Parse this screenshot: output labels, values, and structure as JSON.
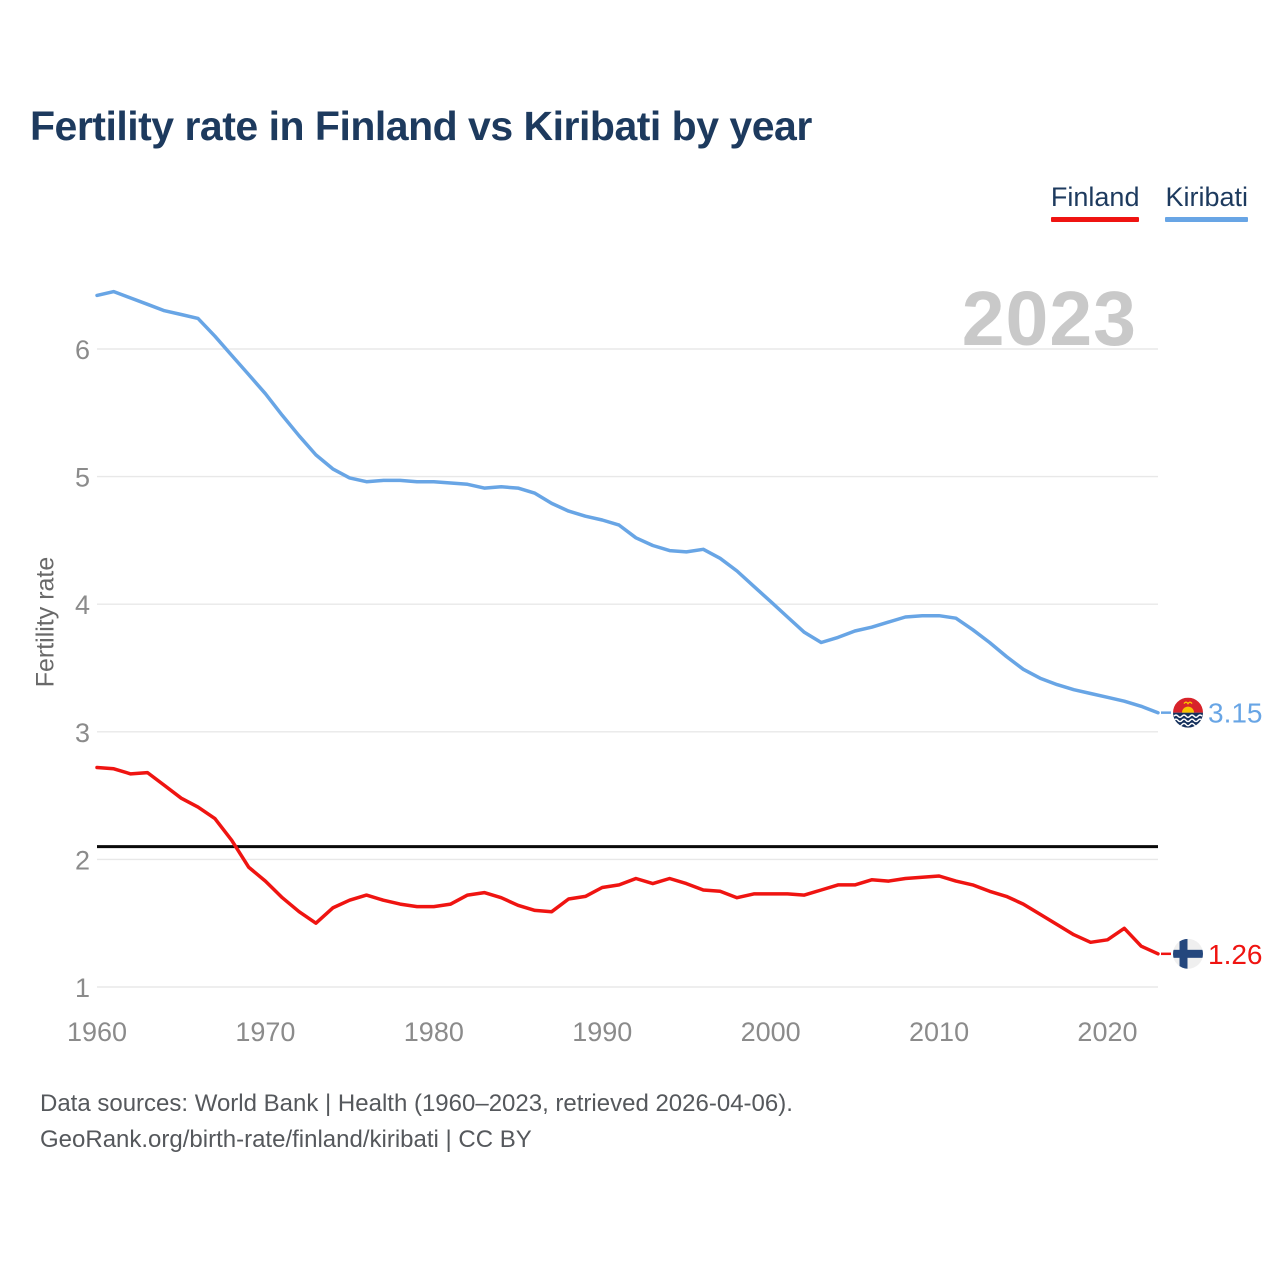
{
  "header": {
    "title": "Fertility rate in Finland vs Kiribati by year"
  },
  "legend": {
    "items": [
      {
        "label": "Finland",
        "color": "#ef1411"
      },
      {
        "label": "Kiribati",
        "color": "#68a5e5"
      }
    ]
  },
  "watermark": "2023",
  "chart_data": {
    "type": "line",
    "title": "Fertility rate in Finland vs Kiribati by year",
    "xlabel": "",
    "ylabel": "Fertility rate",
    "x_range": [
      1960,
      2023
    ],
    "ylim": [
      1,
      6.6
    ],
    "yticks": [
      1,
      2,
      3,
      4,
      5,
      6
    ],
    "xticks": [
      1960,
      1970,
      1980,
      1990,
      2000,
      2010,
      2020
    ],
    "grid": "horizontal",
    "grid_color": "#e8e8e8",
    "tick_color": "#8b8b8b",
    "legend_position": "top-right",
    "reference_line": {
      "value": 2.1,
      "color": "#0a0a0a",
      "name": "replacement-rate"
    },
    "x": [
      1960,
      1961,
      1962,
      1963,
      1964,
      1965,
      1966,
      1967,
      1968,
      1969,
      1970,
      1971,
      1972,
      1973,
      1974,
      1975,
      1976,
      1977,
      1978,
      1979,
      1980,
      1981,
      1982,
      1983,
      1984,
      1985,
      1986,
      1987,
      1988,
      1989,
      1990,
      1991,
      1992,
      1993,
      1994,
      1995,
      1996,
      1997,
      1998,
      1999,
      2000,
      2001,
      2002,
      2003,
      2004,
      2005,
      2006,
      2007,
      2008,
      2009,
      2010,
      2011,
      2012,
      2013,
      2014,
      2015,
      2016,
      2017,
      2018,
      2019,
      2020,
      2021,
      2022,
      2023
    ],
    "series": [
      {
        "name": "Finland",
        "color": "#ef1411",
        "end_label": "1.26",
        "flag_icon": "finland-flag-icon",
        "values": [
          2.72,
          2.71,
          2.67,
          2.68,
          2.58,
          2.48,
          2.41,
          2.32,
          2.15,
          1.94,
          1.83,
          1.7,
          1.59,
          1.5,
          1.62,
          1.68,
          1.72,
          1.68,
          1.65,
          1.63,
          1.63,
          1.65,
          1.72,
          1.74,
          1.7,
          1.64,
          1.6,
          1.59,
          1.69,
          1.71,
          1.78,
          1.8,
          1.85,
          1.81,
          1.85,
          1.81,
          1.76,
          1.75,
          1.7,
          1.73,
          1.73,
          1.73,
          1.72,
          1.76,
          1.8,
          1.8,
          1.84,
          1.83,
          1.85,
          1.86,
          1.87,
          1.83,
          1.8,
          1.75,
          1.71,
          1.65,
          1.57,
          1.49,
          1.41,
          1.35,
          1.37,
          1.46,
          1.32,
          1.26
        ]
      },
      {
        "name": "Kiribati",
        "color": "#68a5e5",
        "end_label": "3.15",
        "flag_icon": "kiribati-flag-icon",
        "values": [
          6.42,
          6.45,
          6.4,
          6.35,
          6.3,
          6.27,
          6.24,
          6.1,
          5.95,
          5.8,
          5.65,
          5.48,
          5.32,
          5.17,
          5.06,
          4.99,
          4.96,
          4.97,
          4.97,
          4.96,
          4.96,
          4.95,
          4.94,
          4.91,
          4.92,
          4.91,
          4.87,
          4.79,
          4.73,
          4.69,
          4.66,
          4.62,
          4.52,
          4.46,
          4.42,
          4.41,
          4.43,
          4.36,
          4.26,
          4.14,
          4.02,
          3.9,
          3.78,
          3.7,
          3.74,
          3.79,
          3.82,
          3.86,
          3.9,
          3.91,
          3.91,
          3.89,
          3.8,
          3.7,
          3.59,
          3.49,
          3.42,
          3.37,
          3.33,
          3.3,
          3.27,
          3.24,
          3.2,
          3.15
        ]
      }
    ]
  },
  "footer": {
    "line1": "Data sources: World Bank | Health (1960–2023, retrieved 2026-04-06).",
    "line2": "GeoRank.org/birth-rate/finland/kiribati | CC BY"
  }
}
